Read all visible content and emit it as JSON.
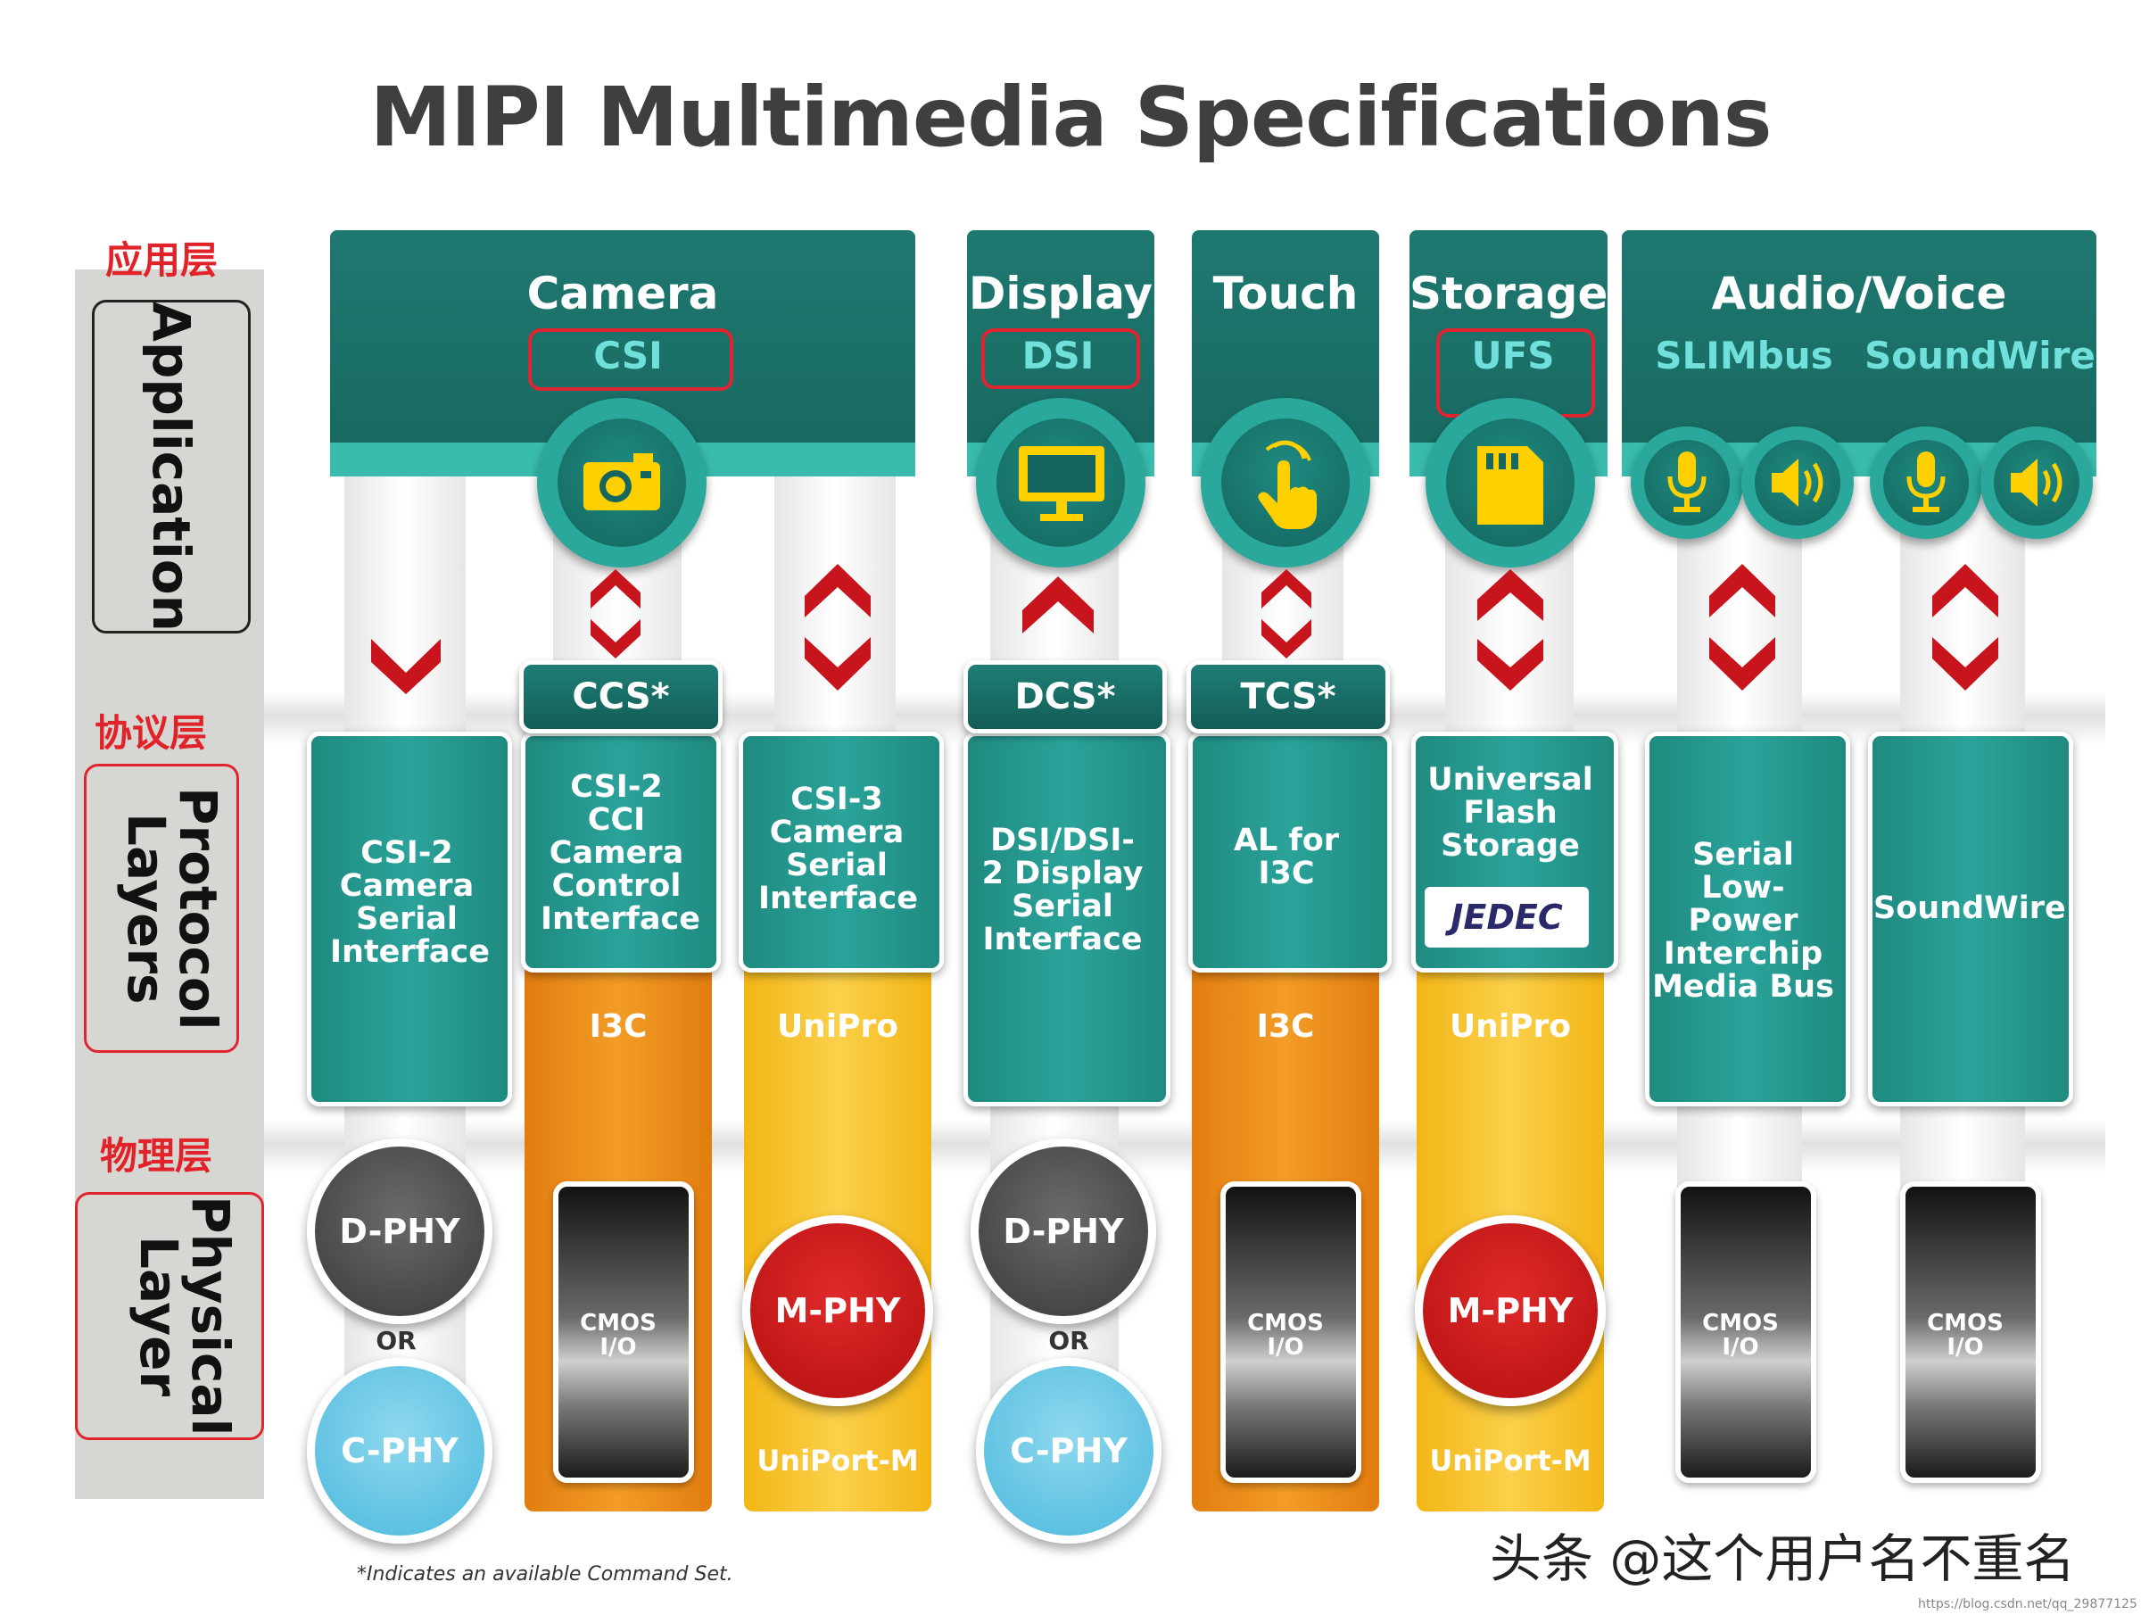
{
  "title": "MIPI Multimedia Specifications",
  "layers": {
    "application": {
      "cn": "应用层",
      "en": "Application"
    },
    "protocol": {
      "cn": "协议层",
      "en": "Protocol Layers"
    },
    "physical": {
      "cn": "物理层",
      "en": "Physical Layer"
    }
  },
  "categories": {
    "camera": {
      "label": "Camera",
      "sub": "CSI"
    },
    "display": {
      "label": "Display",
      "sub": "DSI"
    },
    "touch": {
      "label": "Touch"
    },
    "storage": {
      "label": "Storage",
      "sub": "UFS"
    },
    "audio": {
      "label": "Audio/Voice",
      "sub1": "SLIMbus",
      "sub2": "SoundWire"
    }
  },
  "command_sets": {
    "ccs": "CCS*",
    "dcs": "DCS*",
    "tcs": "TCS*"
  },
  "protocols": {
    "csi2": "CSI-2 Camera Serial Interface",
    "csi2cci": "CSI-2 CCI Camera Control Interface",
    "csi3": "CSI-3 Camera Serial Interface",
    "dsi": "DSI/DSI-2 Display Serial Interface",
    "al_i3c": "AL for I3C",
    "ufs": "Universal Flash Storage",
    "jedec": "JEDEC",
    "slimbus": "Serial Low-Power Interchip Media Bus",
    "soundwire": "SoundWire"
  },
  "transport": {
    "i3c": "I3C",
    "unipro": "UniPro",
    "uniport": "UniPort-M"
  },
  "phy": {
    "dphy": "D-PHY",
    "cphy": "C-PHY",
    "mphy": "M-PHY",
    "or": "OR",
    "cmos": "CMOS I/O"
  },
  "footnote": "*Indicates an available Command Set.",
  "watermark": "头条 @这个用户名不重名",
  "watermark_url": "https://blog.csdn.net/qq_29877125",
  "colors": {
    "teal_dark": "#17685f",
    "teal_light": "#39bcad",
    "orange": "#f08c1a",
    "yellow": "#f8c531",
    "red": "#e02530",
    "icon_yellow": "#ffd000"
  }
}
